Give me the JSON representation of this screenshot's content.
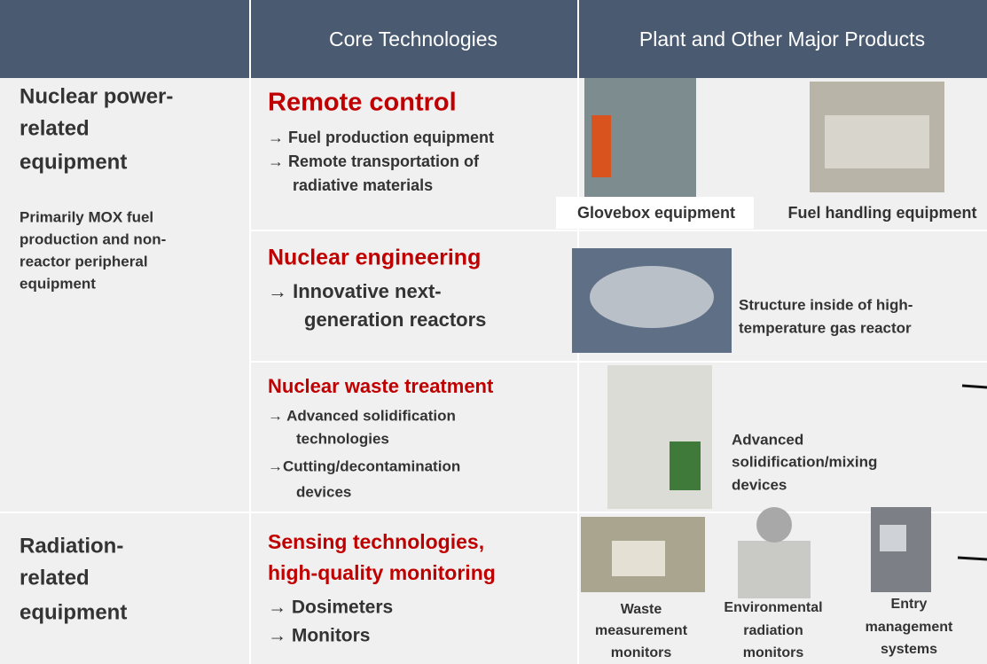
{
  "header": {
    "columns": [
      "Core Technologies",
      "Plant and Other Major Products"
    ]
  },
  "sections": [
    {
      "category": [
        "Nuclear power-",
        "related",
        "equipment"
      ],
      "description": [
        "Primarily MOX fuel",
        "production and non-",
        "reactor peripheral",
        "equipment"
      ],
      "technologies": [
        {
          "title": [
            "Remote control"
          ],
          "items": [
            "→ Fuel production equipment",
            "→ Remote transportation of",
            "radiative materials"
          ],
          "products": [
            {
              "caption": [
                "Glovebox equipment"
              ]
            },
            {
              "caption": [
                "Fuel handling equipment"
              ]
            }
          ]
        },
        {
          "title": [
            "Nuclear engineering"
          ],
          "items": [
            "→ Innovative next-",
            "generation reactors"
          ],
          "products": [
            {
              "caption": [
                "Structure inside of high-",
                "temperature gas reactor"
              ]
            }
          ]
        },
        {
          "title": [
            "Nuclear waste treatment"
          ],
          "items": [
            "→ Advanced solidification",
            "technologies",
            "→Cutting/decontamination",
            "devices"
          ],
          "products": [
            {
              "caption": [
                "Advanced",
                "solidification/mixing",
                "devices"
              ]
            }
          ]
        }
      ]
    },
    {
      "category": [
        "Radiation-",
        "related",
        "equipment"
      ],
      "technologies": [
        {
          "title": [
            "Sensing technologies,",
            "high-quality monitoring"
          ],
          "items": [
            "→ Dosimeters",
            "→ Monitors"
          ],
          "products": [
            {
              "caption": [
                "Waste",
                "measurement",
                "monitors"
              ]
            },
            {
              "caption": [
                "Environmental",
                "radiation",
                "monitors"
              ]
            },
            {
              "caption": [
                "Entry",
                "management",
                "systems"
              ]
            }
          ]
        }
      ]
    }
  ]
}
